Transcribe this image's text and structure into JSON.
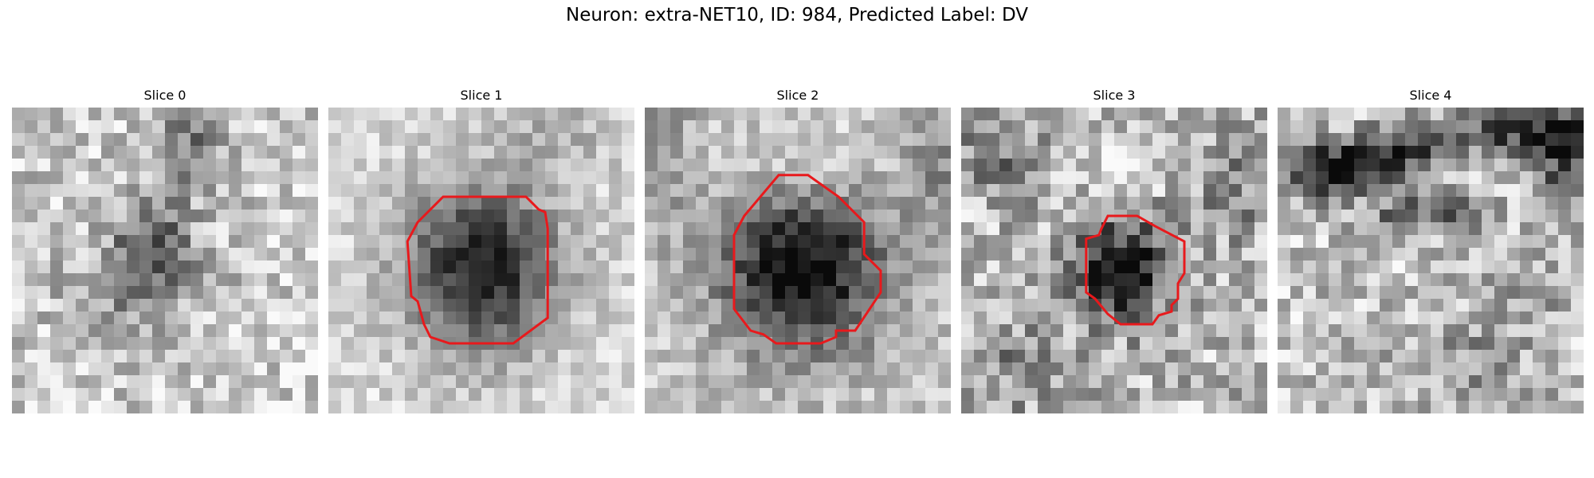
{
  "figure": {
    "title": "Neuron: extra-NET10, ID: 984, Predicted Label: DV"
  },
  "slices": [
    {
      "title": "Slice 0",
      "has_contour": false,
      "description": "grayscale microscopy patch with diffuse dark blob near center-upper area"
    },
    {
      "title": "Slice 1",
      "has_contour": true,
      "contour_color": "#e8191c",
      "description": "dark rounded cell body outlined in red"
    },
    {
      "title": "Slice 2",
      "has_contour": true,
      "contour_color": "#e8191c",
      "description": "large dark cell body outlined in red with light halo"
    },
    {
      "title": "Slice 3",
      "has_contour": true,
      "contour_color": "#e8191c",
      "description": "smaller dark cell body outlined in red"
    },
    {
      "title": "Slice 4",
      "has_contour": false,
      "description": "grayscale patch with dark band across top"
    }
  ],
  "colors": {
    "contour": "#e8191c",
    "background": "#ffffff"
  }
}
